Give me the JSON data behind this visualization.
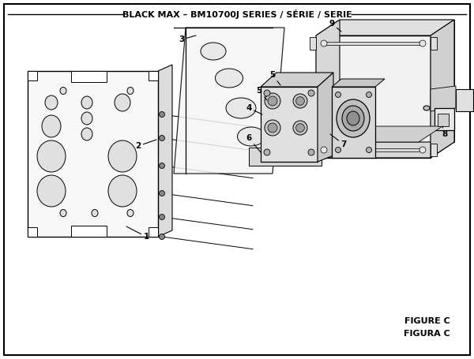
{
  "title": "BLACK MAX – BM10700J SERIES / SÉRIE / SERIE",
  "figure_label": "FIGURE C",
  "figura_label": "FIGURA C",
  "bg_color": "#ffffff",
  "line_color": "#000000",
  "title_fontsize": 8,
  "label_fontsize": 7.5,
  "figure_label_fontsize": 8
}
